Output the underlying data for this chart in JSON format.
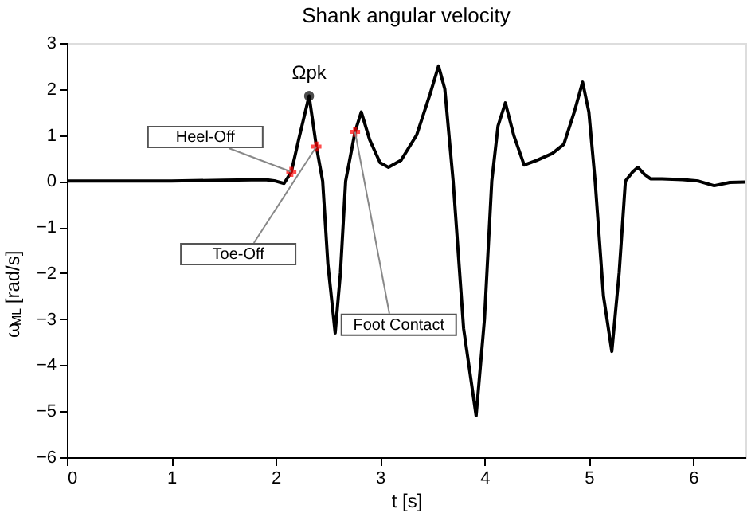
{
  "chart_data": {
    "type": "line",
    "title": "Shank angular velocity",
    "xlabel": "t [s]",
    "ylabel": "ω$_{ML}$ [rad/s]",
    "xlim": [
      0,
      6.5
    ],
    "xticks": [
      0,
      1,
      2,
      3,
      4,
      5,
      6
    ],
    "ylim": [
      -6,
      3
    ],
    "yticks": [
      -6,
      -5,
      -4,
      -3,
      -2,
      -1,
      0,
      1,
      2,
      3
    ],
    "grid": false,
    "series": [
      {
        "color": "#000000",
        "line_style": "solid",
        "x": [
          0,
          0.5,
          1.0,
          1.5,
          1.9,
          2.0,
          2.08,
          2.15,
          2.22,
          2.32,
          2.39,
          2.45,
          2.5,
          2.57,
          2.62,
          2.67,
          2.76,
          2.82,
          2.9,
          3.0,
          3.08,
          3.2,
          3.35,
          3.48,
          3.56,
          3.62,
          3.7,
          3.8,
          3.92,
          4.0,
          4.07,
          4.13,
          4.2,
          4.28,
          4.38,
          4.5,
          4.65,
          4.76,
          4.86,
          4.94,
          5.0,
          5.06,
          5.14,
          5.22,
          5.29,
          5.35,
          5.42,
          5.47,
          5.53,
          5.59,
          5.7,
          5.9,
          6.05,
          6.2,
          6.35,
          6.5
        ],
        "values": [
          0,
          0,
          0,
          0.02,
          0.03,
          0.0,
          -0.05,
          0.2,
          0.9,
          1.85,
          0.75,
          0,
          -1.8,
          -3.3,
          -2.0,
          0,
          1.07,
          1.5,
          0.9,
          0.4,
          0.3,
          0.45,
          1.0,
          1.9,
          2.5,
          2.0,
          0,
          -3.2,
          -5.1,
          -3.0,
          0,
          1.2,
          1.7,
          1.0,
          0.35,
          0.45,
          0.6,
          0.8,
          1.5,
          2.15,
          1.5,
          0,
          -2.5,
          -3.7,
          -2.0,
          0,
          0.2,
          0.3,
          0.15,
          0.05,
          0.05,
          0.03,
          0.0,
          -0.1,
          -0.03,
          -0.02
        ]
      },
      {
        "type": "scatter",
        "color": "#ff0000",
        "marker": "cross",
        "x": [
          2.15,
          2.39,
          2.76
        ],
        "values": [
          0.2,
          0.75,
          1.07
        ]
      },
      {
        "type": "scatter",
        "color": "#000000",
        "marker": "circle",
        "x": [
          2.32
        ],
        "values": [
          1.85
        ]
      }
    ],
    "annotations": [
      {
        "text": "Heel-Off",
        "x": 2.15,
        "y": 0.2
      },
      {
        "text": "Toe-Off",
        "x": 2.39,
        "y": 0.75
      },
      {
        "text": "Foot Contact",
        "x": 2.76,
        "y": 1.07
      },
      {
        "text": "Ωpk",
        "x": 2.32,
        "y": 1.85
      }
    ]
  }
}
